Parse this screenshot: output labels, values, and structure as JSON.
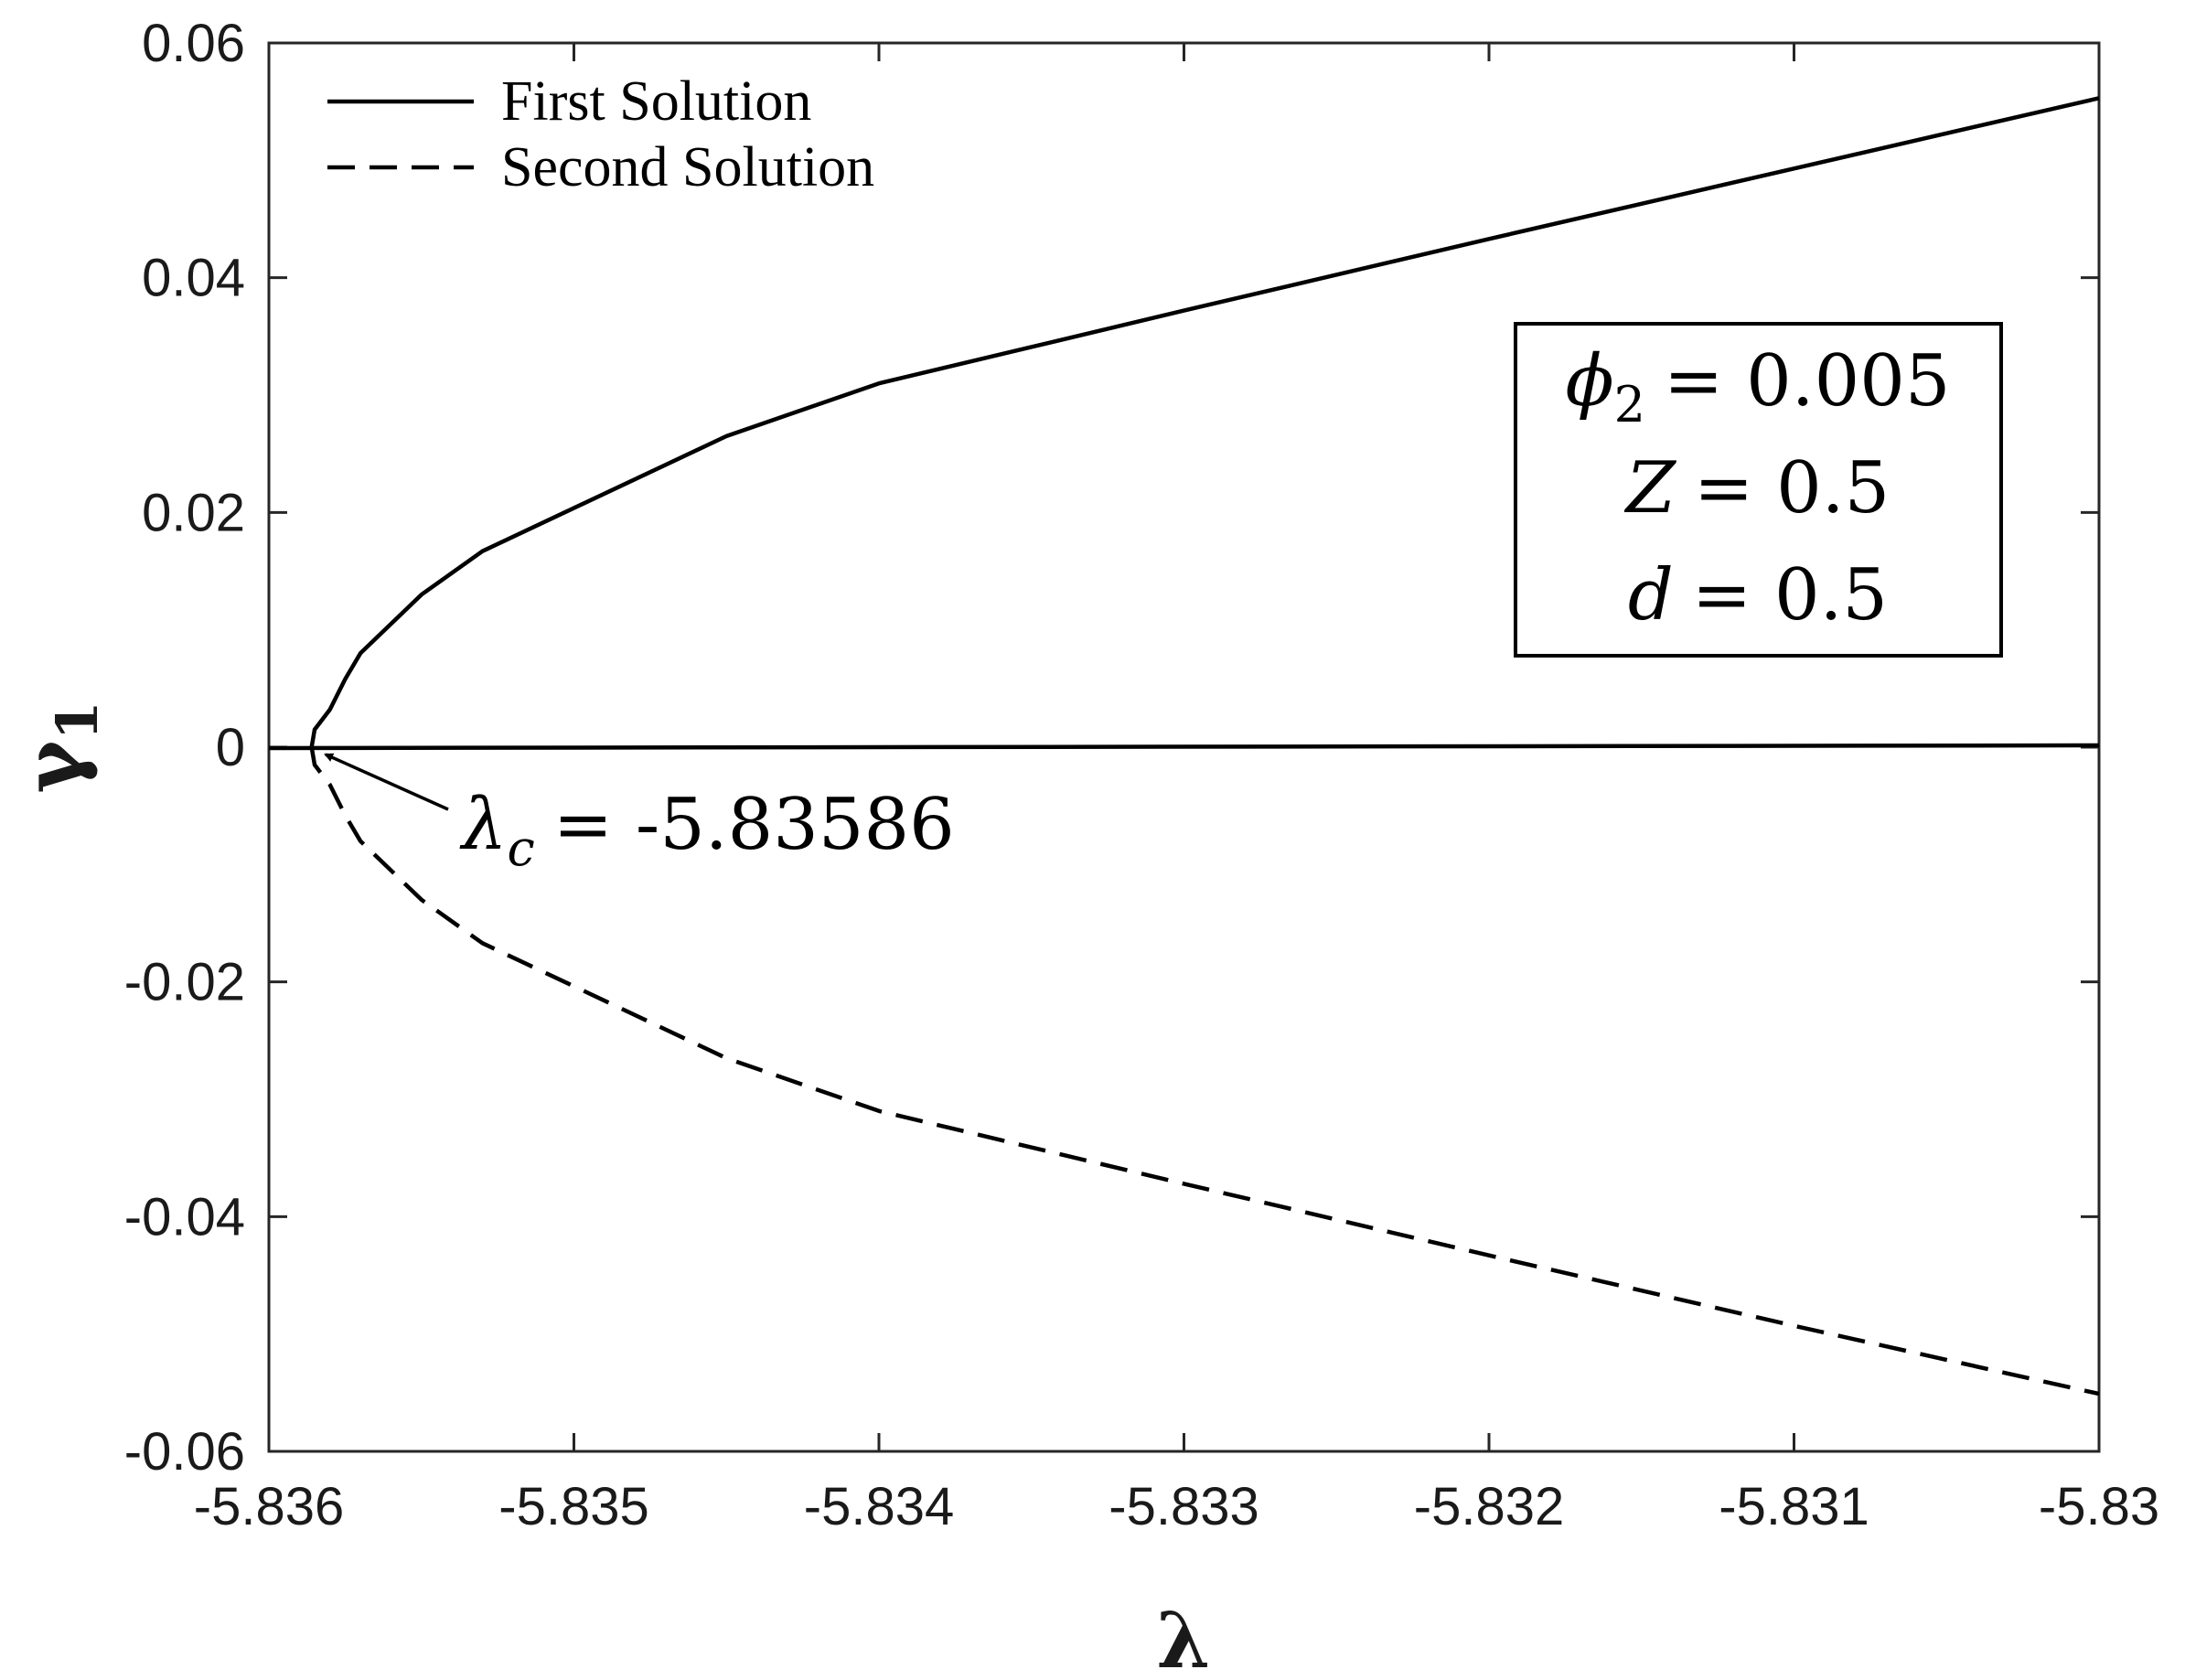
{
  "chart_data": {
    "type": "line",
    "xlabel": "λ",
    "ylabel": "γ",
    "ylabel_subscript": "1",
    "xlim": [
      -5.836,
      -5.83
    ],
    "ylim": [
      -0.06,
      0.06
    ],
    "xticks": [
      -5.836,
      -5.835,
      -5.834,
      -5.833,
      -5.832,
      -5.831,
      -5.83
    ],
    "yticks": [
      -0.06,
      -0.04,
      -0.02,
      0,
      0.02,
      0.04,
      0.06
    ],
    "xtick_labels": [
      "-5.836",
      "-5.835",
      "-5.834",
      "-5.833",
      "-5.832",
      "-5.831",
      "-5.83"
    ],
    "ytick_labels": [
      "-0.06",
      "-0.04",
      "-0.02",
      "0",
      "0.02",
      "0.04",
      "0.06"
    ],
    "grid": false,
    "legend_position": "top-left",
    "series": [
      {
        "name": "First Solution",
        "style": "solid",
        "color": "#000000",
        "x": [
          -5.83586,
          -5.83585,
          -5.8358,
          -5.83575,
          -5.8357,
          -5.8355,
          -5.8353,
          -5.8345,
          -5.834,
          -5.833,
          -5.832,
          -5.831,
          -5.83
        ],
        "y": [
          0,
          0.0015,
          0.0032,
          0.0058,
          0.008,
          0.013,
          0.0167,
          0.0265,
          0.031,
          0.0372,
          0.0433,
          0.0493,
          0.0553
        ]
      },
      {
        "name": "Second Solution",
        "style": "dashed",
        "color": "#000000",
        "x": [
          -5.83586,
          -5.83585,
          -5.8358,
          -5.83575,
          -5.8357,
          -5.8355,
          -5.8353,
          -5.8345,
          -5.834,
          -5.833,
          -5.832,
          -5.831,
          -5.83
        ],
        "y": [
          0,
          -0.0015,
          -0.0032,
          -0.0058,
          -0.008,
          -0.013,
          -0.0167,
          -0.0265,
          -0.031,
          -0.0372,
          -0.0433,
          -0.0493,
          -0.0551
        ]
      }
    ],
    "reference_line": {
      "y": 0,
      "x_start": -5.836,
      "x_end": -5.83
    },
    "annotation": {
      "symbol": "λ",
      "subscript": "c",
      "text": "= -5.83586",
      "point": [
        -5.83585,
        0
      ]
    },
    "parameter_box": [
      {
        "symbol": "ϕ",
        "subscript": "2",
        "text": "= 0.005"
      },
      {
        "symbol": "Z",
        "subscript": "",
        "text": "= 0.5"
      },
      {
        "symbol": "d",
        "subscript": "",
        "text": "= 0.5"
      }
    ]
  }
}
